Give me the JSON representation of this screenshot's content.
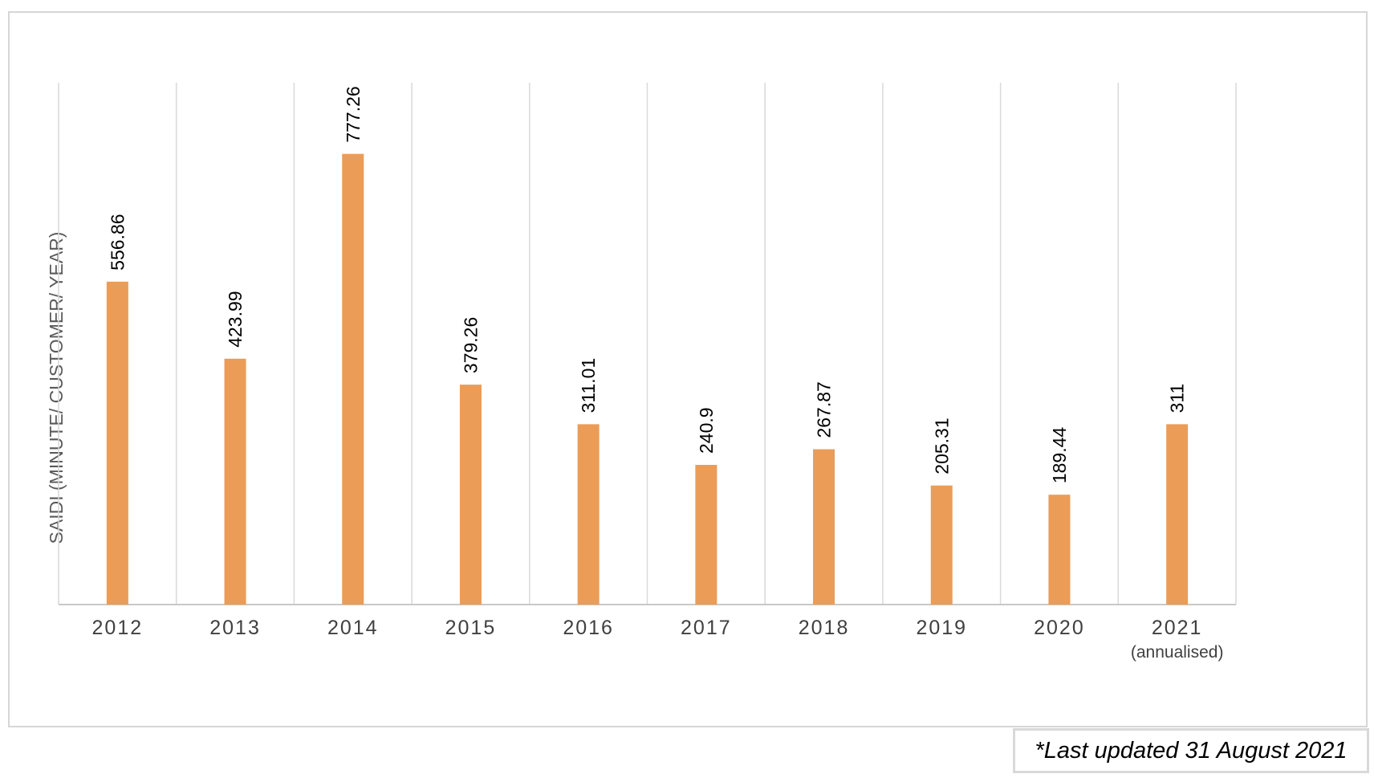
{
  "chart_data": {
    "type": "bar",
    "title": "",
    "xlabel": "",
    "ylabel": "SAIDI (MINUTE/ CUSTOMER/ YEAR)",
    "categories": [
      "2012",
      "2013",
      "2014",
      "2015",
      "2016",
      "2017",
      "2018",
      "2019",
      "2020",
      "2021"
    ],
    "category_sublabels": [
      "",
      "",
      "",
      "",
      "",
      "",
      "",
      "",
      "",
      "(annualised)"
    ],
    "values": [
      556.86,
      423.99,
      777.26,
      379.26,
      311.01,
      240.9,
      267.87,
      205.31,
      189.44,
      311
    ],
    "value_labels": [
      "556.86",
      "423.99",
      "777.26",
      "379.26",
      "311.01",
      "240.9",
      "267.87",
      "205.31",
      "189.44",
      "311"
    ],
    "ylim": [
      0,
      900
    ],
    "grid": "vertical separators between categories",
    "legend": "none",
    "bar_color": "#eb9c57"
  },
  "footnote": "*Last updated 31 August 2021"
}
